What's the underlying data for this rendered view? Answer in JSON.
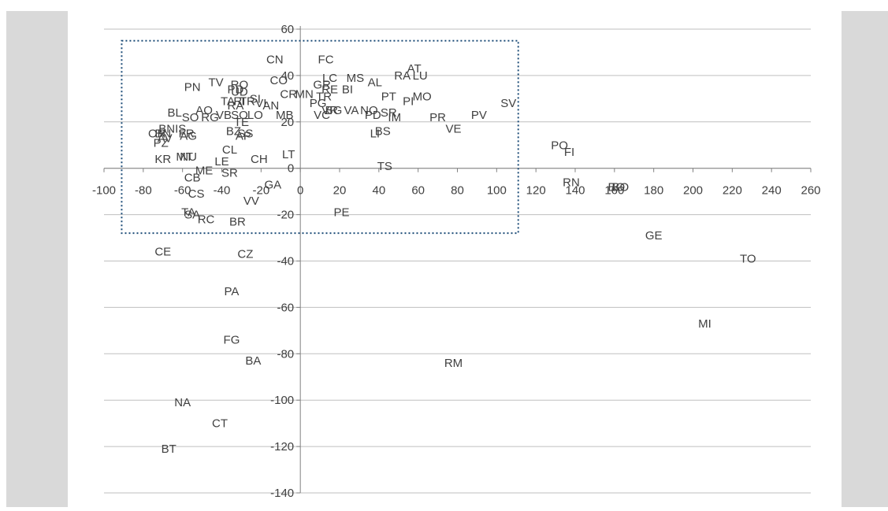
{
  "chart_data": {
    "type": "scatter",
    "title": "",
    "xlabel": "",
    "ylabel": "",
    "xlim": [
      -100,
      260
    ],
    "ylim": [
      -140,
      60
    ],
    "x_ticks": [
      -100,
      -80,
      -60,
      -40,
      -20,
      0,
      20,
      40,
      60,
      80,
      100,
      120,
      140,
      160,
      180,
      200,
      220,
      240,
      260
    ],
    "y_ticks": [
      60,
      40,
      20,
      0,
      -20,
      -40,
      -60,
      -80,
      -100,
      -120,
      -140
    ],
    "grid": "horizontal",
    "legend": "none",
    "highlight_box": {
      "x": [
        -91,
        111
      ],
      "y": [
        -28,
        55
      ]
    },
    "colors": {
      "background": "#d9d9d9",
      "plot_area": "#ffffff",
      "grid": "#bfbfbf",
      "axis": "#808080",
      "text": "#404040",
      "box": "#1f4e79"
    },
    "points": [
      {
        "label": "CN",
        "x": -13,
        "y": 47
      },
      {
        "label": "FC",
        "x": 13,
        "y": 47
      },
      {
        "label": "AT",
        "x": 58,
        "y": 43
      },
      {
        "label": "LU",
        "x": 61,
        "y": 40
      },
      {
        "label": "RA",
        "x": 52,
        "y": 40
      },
      {
        "label": "MS",
        "x": 28,
        "y": 39
      },
      {
        "label": "AL",
        "x": 38,
        "y": 37
      },
      {
        "label": "LC",
        "x": 15,
        "y": 39
      },
      {
        "label": "CO",
        "x": -11,
        "y": 38
      },
      {
        "label": "PN",
        "x": -55,
        "y": 35
      },
      {
        "label": "TV",
        "x": -43,
        "y": 37
      },
      {
        "label": "RO",
        "x": -31,
        "y": 36
      },
      {
        "label": "PD",
        "x": -33,
        "y": 34
      },
      {
        "label": "UD",
        "x": -31,
        "y": 33
      },
      {
        "label": "GR",
        "x": 11,
        "y": 36
      },
      {
        "label": "BI",
        "x": 24,
        "y": 34
      },
      {
        "label": "RE",
        "x": 15,
        "y": 34
      },
      {
        "label": "PT",
        "x": 45,
        "y": 31
      },
      {
        "label": "MO",
        "x": 62,
        "y": 31
      },
      {
        "label": "PI",
        "x": 55,
        "y": 29
      },
      {
        "label": "SV",
        "x": 106,
        "y": 28
      },
      {
        "label": "CR",
        "x": -6,
        "y": 32
      },
      {
        "label": "MN",
        "x": 2,
        "y": 32
      },
      {
        "label": "PG",
        "x": 9,
        "y": 28
      },
      {
        "label": "TR",
        "x": 12,
        "y": 31
      },
      {
        "label": "VR",
        "x": 15,
        "y": 25
      },
      {
        "label": "BG",
        "x": 17,
        "y": 25
      },
      {
        "label": "VA",
        "x": 26,
        "y": 25
      },
      {
        "label": "NO",
        "x": 35,
        "y": 25
      },
      {
        "label": "SR",
        "x": 45,
        "y": 24
      },
      {
        "label": "PD",
        "x": 37,
        "y": 23
      },
      {
        "label": "IM",
        "x": 48,
        "y": 22
      },
      {
        "label": "PR",
        "x": 70,
        "y": 22
      },
      {
        "label": "PV",
        "x": 91,
        "y": 23
      },
      {
        "label": "VE",
        "x": 78,
        "y": 17
      },
      {
        "label": "LI",
        "x": 38,
        "y": 15
      },
      {
        "label": "BS",
        "x": 42,
        "y": 16
      },
      {
        "label": "VC",
        "x": 11,
        "y": 23
      },
      {
        "label": "TA",
        "x": -37,
        "y": 29
      },
      {
        "label": "RI",
        "x": -31,
        "y": 29
      },
      {
        "label": "TR",
        "x": -27,
        "y": 29
      },
      {
        "label": "SI",
        "x": -23,
        "y": 30
      },
      {
        "label": "RA",
        "x": -33,
        "y": 27
      },
      {
        "label": "AN",
        "x": -15,
        "y": 27
      },
      {
        "label": "VI",
        "x": -20,
        "y": 28
      },
      {
        "label": "AO",
        "x": -49,
        "y": 25
      },
      {
        "label": "BL",
        "x": -64,
        "y": 24
      },
      {
        "label": "SO",
        "x": -56,
        "y": 22
      },
      {
        "label": "RG",
        "x": -46,
        "y": 22
      },
      {
        "label": "VB",
        "x": -39,
        "y": 23
      },
      {
        "label": "SO",
        "x": -31,
        "y": 23
      },
      {
        "label": "LO",
        "x": -23,
        "y": 23
      },
      {
        "label": "MB",
        "x": -8,
        "y": 23
      },
      {
        "label": "TE",
        "x": -30,
        "y": 20
      },
      {
        "label": "BN",
        "x": -68,
        "y": 17
      },
      {
        "label": "IS",
        "x": -61,
        "y": 17
      },
      {
        "label": "OR",
        "x": -73,
        "y": 15
      },
      {
        "label": "BN",
        "x": -70,
        "y": 15
      },
      {
        "label": "FR",
        "x": -58,
        "y": 15
      },
      {
        "label": "AG",
        "x": -57,
        "y": 14
      },
      {
        "label": "AV",
        "x": -69,
        "y": 13
      },
      {
        "label": "PZ",
        "x": -71,
        "y": 11
      },
      {
        "label": "BZ",
        "x": -34,
        "y": 16
      },
      {
        "label": "SS",
        "x": -28,
        "y": 15
      },
      {
        "label": "AP",
        "x": -29,
        "y": 14
      },
      {
        "label": "CL",
        "x": -36,
        "y": 8
      },
      {
        "label": "LT",
        "x": -6,
        "y": 6
      },
      {
        "label": "CH",
        "x": -21,
        "y": 4
      },
      {
        "label": "KR",
        "x": -70,
        "y": 4
      },
      {
        "label": "MT",
        "x": -59,
        "y": 5
      },
      {
        "label": "NU",
        "x": -57,
        "y": 5
      },
      {
        "label": "LE",
        "x": -40,
        "y": 3
      },
      {
        "label": "ME",
        "x": -49,
        "y": -1
      },
      {
        "label": "SR",
        "x": -36,
        "y": -2
      },
      {
        "label": "CB",
        "x": -55,
        "y": -4
      },
      {
        "label": "CS",
        "x": -53,
        "y": -11
      },
      {
        "label": "GA",
        "x": -14,
        "y": -7
      },
      {
        "label": "VV",
        "x": -25,
        "y": -14
      },
      {
        "label": "TA",
        "x": -57,
        "y": -19
      },
      {
        "label": "SA",
        "x": -55,
        "y": -20
      },
      {
        "label": "RC",
        "x": -48,
        "y": -22
      },
      {
        "label": "BR",
        "x": -32,
        "y": -23
      },
      {
        "label": "PE",
        "x": 21,
        "y": -19
      },
      {
        "label": "TS",
        "x": 43,
        "y": 1
      },
      {
        "label": "PO",
        "x": 132,
        "y": 10
      },
      {
        "label": "FI",
        "x": 137,
        "y": 7
      },
      {
        "label": "RN",
        "x": 138,
        "y": -6
      },
      {
        "label": "BO",
        "x": 161,
        "y": -8
      },
      {
        "label": "BO",
        "x": 163,
        "y": -8
      },
      {
        "label": "GE",
        "x": 180,
        "y": -29
      },
      {
        "label": "TO",
        "x": 228,
        "y": -39
      },
      {
        "label": "MI",
        "x": 206,
        "y": -67
      },
      {
        "label": "RM",
        "x": 78,
        "y": -84
      },
      {
        "label": "CE",
        "x": -70,
        "y": -36
      },
      {
        "label": "CZ",
        "x": -28,
        "y": -37
      },
      {
        "label": "PA",
        "x": -35,
        "y": -53
      },
      {
        "label": "FG",
        "x": -35,
        "y": -74
      },
      {
        "label": "BA",
        "x": -24,
        "y": -83
      },
      {
        "label": "NA",
        "x": -60,
        "y": -101
      },
      {
        "label": "CT",
        "x": -41,
        "y": -110
      },
      {
        "label": "BT",
        "x": -67,
        "y": -121
      }
    ]
  }
}
